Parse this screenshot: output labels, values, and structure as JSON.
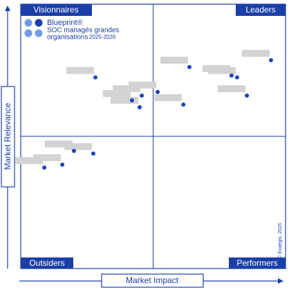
{
  "chart_data": {
    "type": "scatter",
    "quadrants": [
      "Visionnaires",
      "Leaders",
      "Outsiders",
      "Performers"
    ],
    "x_label": "Market Impact",
    "y_label": "Market Relevance",
    "legend": [
      "Blueprint®",
      "SOC managés grandes",
      "organisations",
      "2025-2026"
    ],
    "copyright": "© Exaegis, 2025",
    "xlim": [
      0,
      100
    ],
    "ylim": [
      0,
      100
    ],
    "series": [
      {
        "color": "#1a44b8",
        "x": [
          94.5,
          79.6,
          81.7,
          85.4,
          63.7,
          61.4,
          51.7,
          45.7,
          42.0,
          44.9,
          28.2,
          27.4,
          20.1,
          15.7,
          8.9
        ],
        "values": [
          78.8,
          73.0,
          72.3,
          65.4,
          76.2,
          62.0,
          66.8,
          65.4,
          63.6,
          61.0,
          72.3,
          43.5,
          44.5,
          39.3,
          38.2
        ]
      }
    ]
  }
}
